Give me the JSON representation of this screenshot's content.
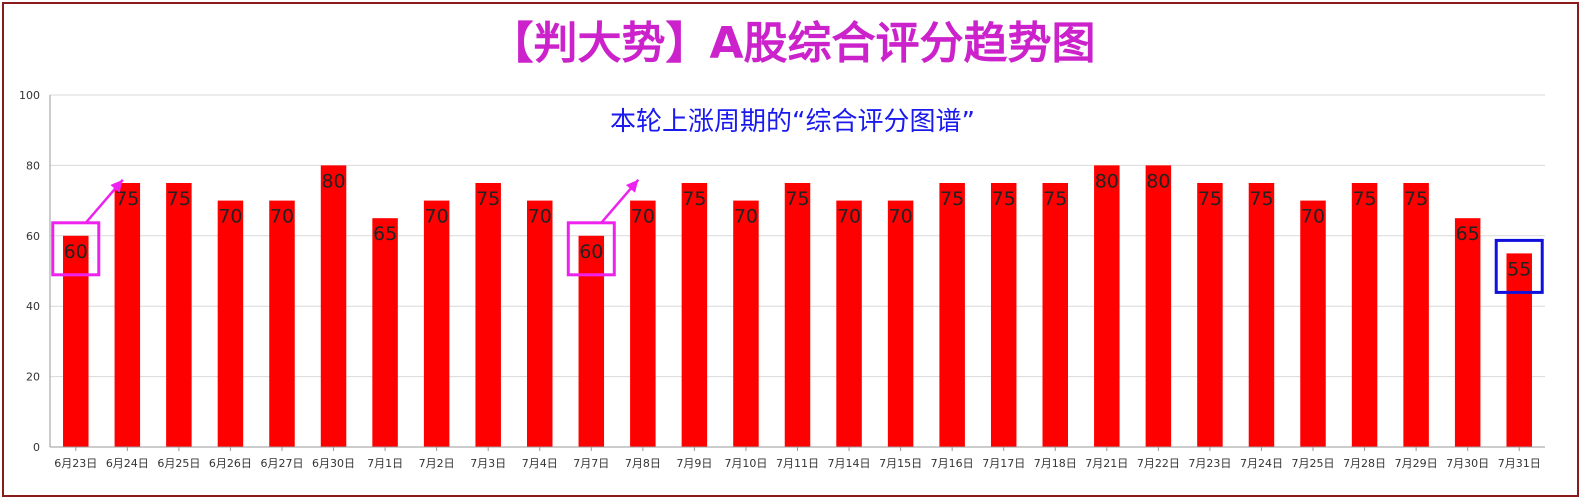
{
  "page_title": "【判大势】A股综合评分趋势图",
  "annotation": "本轮上涨周期的“综合评分图谱”",
  "chart_data": {
    "type": "bar",
    "title": "【判大势】A股综合评分趋势图",
    "annotation": "本轮上涨周期的“综合评分图谱”",
    "categories": [
      "6月23日",
      "6月24日",
      "6月25日",
      "6月26日",
      "6月27日",
      "6月30日",
      "7月1日",
      "7月2日",
      "7月3日",
      "7月4日",
      "7月7日",
      "7月8日",
      "7月9日",
      "7月10日",
      "7月11日",
      "7月14日",
      "7月15日",
      "7月16日",
      "7月17日",
      "7月18日",
      "7月21日",
      "7月22日",
      "7月23日",
      "7月24日",
      "7月25日",
      "7月28日",
      "7月29日",
      "7月30日",
      "7月31日"
    ],
    "values": [
      60,
      75,
      75,
      70,
      70,
      80,
      65,
      70,
      75,
      70,
      60,
      70,
      75,
      70,
      75,
      70,
      70,
      75,
      75,
      75,
      80,
      80,
      75,
      75,
      70,
      75,
      75,
      65,
      55
    ],
    "ylim": [
      0,
      100
    ],
    "yticks": [
      0,
      20,
      40,
      60,
      80,
      100
    ],
    "grid": true,
    "legend": "none",
    "highlight_magenta": [
      "6月23日",
      "7月7日"
    ],
    "highlight_blue": [
      "7月31日"
    ],
    "colors": {
      "bar": "#ff0000",
      "title": "#cc22cc",
      "annotation": "#1a1aee",
      "highlight_magenta": "#ee22ee",
      "highlight_blue": "#1111dd",
      "frame": "#8b1a1a"
    }
  }
}
